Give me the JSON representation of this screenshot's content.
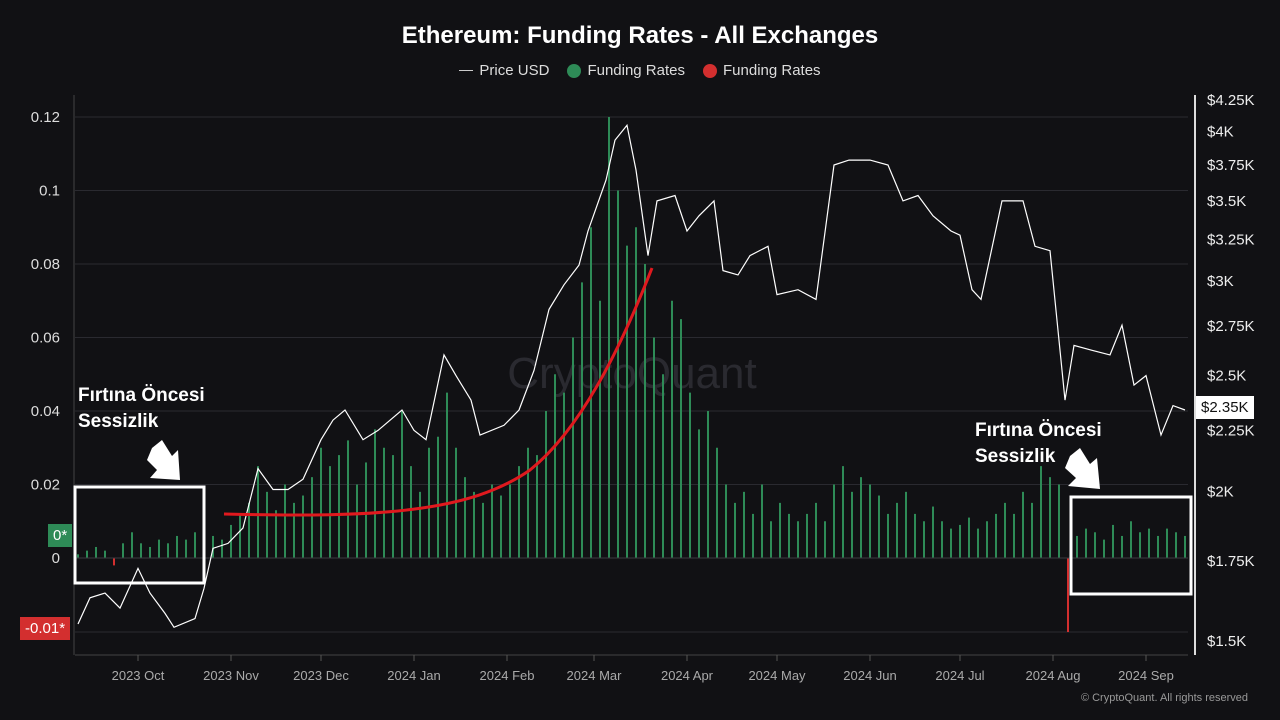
{
  "chart_data": {
    "type": "bar+line",
    "title": "Ethereum: Funding Rates - All Exchanges",
    "legend": [
      "Price USD",
      "Funding Rates",
      "Funding Rates"
    ],
    "legend_placement": "top",
    "colors": {
      "price": "#ffffff",
      "funding_positive": "#2e8b57",
      "funding_negative": "#d32f2f",
      "trend_curve": "#e0191e"
    },
    "x_ticks": [
      "2023 Oct",
      "2023 Nov",
      "2023 Dec",
      "2024 Jan",
      "2024 Feb",
      "2024 Mar",
      "2024 Apr",
      "2024 May",
      "2024 Jun",
      "2024 Jul",
      "2024 Aug",
      "2024 Sep"
    ],
    "y_left_ticks": [
      "0.12",
      "0.1",
      "0.08",
      "0.06",
      "0.04",
      "0.02",
      "0"
    ],
    "y_left_range": [
      -0.01,
      0.12
    ],
    "y_right_ticks": [
      "$4.25K",
      "$4K",
      "$3.75K",
      "$3.5K",
      "$3.25K",
      "$3K",
      "$2.75K",
      "$2.5K",
      "$2.25K",
      "$2K",
      "$1.75K",
      "$1.5K"
    ],
    "y_right_range": [
      1500,
      4250
    ],
    "y_right_scale": "log",
    "grid": true,
    "badges": {
      "zero": "0*",
      "neg": "-0.01*",
      "price_current": "$2.35K"
    },
    "funding_start": "2023-09-11",
    "funding_interval_days": 3,
    "funding_rates": [
      0.001,
      0.002,
      0.003,
      0.002,
      -0.001,
      0.004,
      0.007,
      0.004,
      0.003,
      0.005,
      0.004,
      0.006,
      0.005,
      0.007,
      0.004,
      0.006,
      0.005,
      0.009,
      0.012,
      0.015,
      0.025,
      0.018,
      0.013,
      0.02,
      0.015,
      0.017,
      0.022,
      0.03,
      0.025,
      0.028,
      0.032,
      0.02,
      0.026,
      0.035,
      0.03,
      0.028,
      0.04,
      0.025,
      0.018,
      0.03,
      0.033,
      0.045,
      0.03,
      0.022,
      0.018,
      0.015,
      0.02,
      0.017,
      0.02,
      0.025,
      0.03,
      0.028,
      0.04,
      0.05,
      0.045,
      0.06,
      0.075,
      0.09,
      0.07,
      0.12,
      0.1,
      0.085,
      0.09,
      0.08,
      0.06,
      0.05,
      0.07,
      0.065,
      0.045,
      0.035,
      0.04,
      0.03,
      0.02,
      0.015,
      0.018,
      0.012,
      0.02,
      0.01,
      0.015,
      0.012,
      0.01,
      0.012,
      0.015,
      0.01,
      0.02,
      0.025,
      0.018,
      0.022,
      0.02,
      0.017,
      0.012,
      0.015,
      0.018,
      0.012,
      0.01,
      0.014,
      0.01,
      0.008,
      0.009,
      0.011,
      0.008,
      0.01,
      0.012,
      0.015,
      0.012,
      0.018,
      0.015,
      0.025,
      0.022,
      0.02,
      -0.01,
      0.006,
      0.008,
      0.007,
      0.005,
      0.009,
      0.006,
      0.01,
      0.007,
      0.008,
      0.006,
      0.008,
      0.007,
      0.006
    ],
    "price": [
      [
        "2023-09-11",
        1550
      ],
      [
        "2023-09-15",
        1630
      ],
      [
        "2023-09-20",
        1645
      ],
      [
        "2023-09-25",
        1598
      ],
      [
        "2023-10-01",
        1725
      ],
      [
        "2023-10-05",
        1645
      ],
      [
        "2023-10-10",
        1582
      ],
      [
        "2023-10-13",
        1540
      ],
      [
        "2023-10-20",
        1566
      ],
      [
        "2023-10-23",
        1660
      ],
      [
        "2023-10-26",
        1793
      ],
      [
        "2023-10-31",
        1810
      ],
      [
        "2023-11-05",
        1865
      ],
      [
        "2023-11-10",
        2090
      ],
      [
        "2023-11-15",
        2008
      ],
      [
        "2023-11-20",
        2008
      ],
      [
        "2023-11-25",
        2048
      ],
      [
        "2023-12-01",
        2210
      ],
      [
        "2023-12-05",
        2295
      ],
      [
        "2023-12-09",
        2340
      ],
      [
        "2023-12-15",
        2210
      ],
      [
        "2023-12-20",
        2250
      ],
      [
        "2023-12-28",
        2340
      ],
      [
        "2024-01-01",
        2250
      ],
      [
        "2024-01-05",
        2210
      ],
      [
        "2024-01-11",
        2602
      ],
      [
        "2024-01-15",
        2500
      ],
      [
        "2024-01-20",
        2385
      ],
      [
        "2024-01-23",
        2230
      ],
      [
        "2024-01-31",
        2272
      ],
      [
        "2024-02-05",
        2340
      ],
      [
        "2024-02-10",
        2525
      ],
      [
        "2024-02-15",
        2840
      ],
      [
        "2024-02-20",
        2978
      ],
      [
        "2024-02-25",
        3093
      ],
      [
        "2024-02-28",
        3303
      ],
      [
        "2024-03-05",
        3643
      ],
      [
        "2024-03-08",
        3934
      ],
      [
        "2024-03-12",
        4048
      ],
      [
        "2024-03-15",
        3714
      ],
      [
        "2024-03-19",
        3150
      ],
      [
        "2024-03-22",
        3500
      ],
      [
        "2024-03-28",
        3536
      ],
      [
        "2024-04-01",
        3303
      ],
      [
        "2024-04-05",
        3401
      ],
      [
        "2024-04-10",
        3500
      ],
      [
        "2024-04-13",
        3060
      ],
      [
        "2024-04-18",
        3035
      ],
      [
        "2024-04-22",
        3150
      ],
      [
        "2024-04-28",
        3207
      ],
      [
        "2024-05-01",
        2922
      ],
      [
        "2024-05-08",
        2950
      ],
      [
        "2024-05-14",
        2895
      ],
      [
        "2024-05-20",
        3750
      ],
      [
        "2024-05-25",
        3786
      ],
      [
        "2024-06-01",
        3786
      ],
      [
        "2024-06-07",
        3750
      ],
      [
        "2024-06-12",
        3500
      ],
      [
        "2024-06-17",
        3536
      ],
      [
        "2024-06-22",
        3401
      ],
      [
        "2024-06-28",
        3303
      ],
      [
        "2024-07-01",
        3276
      ],
      [
        "2024-07-05",
        2950
      ],
      [
        "2024-07-08",
        2895
      ],
      [
        "2024-07-15",
        3500
      ],
      [
        "2024-07-22",
        3500
      ],
      [
        "2024-07-26",
        3207
      ],
      [
        "2024-07-31",
        3180
      ],
      [
        "2024-08-05",
        2385
      ],
      [
        "2024-08-08",
        2650
      ],
      [
        "2024-08-14",
        2625
      ],
      [
        "2024-08-20",
        2602
      ],
      [
        "2024-08-24",
        2755
      ],
      [
        "2024-08-28",
        2455
      ],
      [
        "2024-09-01",
        2500
      ],
      [
        "2024-09-06",
        2230
      ],
      [
        "2024-09-10",
        2360
      ],
      [
        "2024-09-14",
        2340
      ]
    ]
  },
  "watermark": "CryptoQuant",
  "annotations": {
    "left_line1": "Fırtına Öncesi",
    "left_line2": "Sessizlik",
    "right_line1": "Fırtına Öncesi",
    "right_line2": "Sessizlik"
  },
  "copyright": "© CryptoQuant. All rights reserved"
}
